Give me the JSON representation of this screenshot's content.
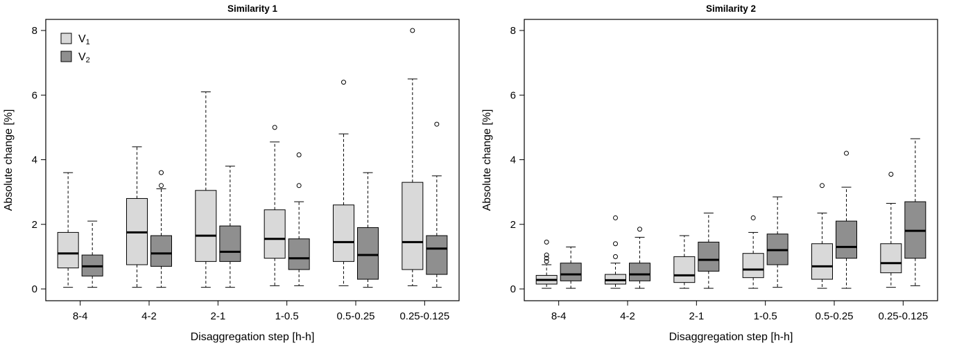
{
  "figure": {
    "background": "#ffffff",
    "panel_count": 2
  },
  "chart_data": [
    {
      "type": "boxplot",
      "title": "Similarity 1",
      "xlabel": "Disaggregation step [h-h]",
      "ylabel": "Absolute change [%]",
      "ylim": [
        0,
        8
      ],
      "yticks": [
        0,
        2,
        4,
        6,
        8
      ],
      "categories": [
        "8-4",
        "4-2",
        "2-1",
        "1-0.5",
        "0.5-0.25",
        "0.25-0.125"
      ],
      "legend": {
        "show": true,
        "position": "top-left"
      },
      "series": [
        {
          "name": "V1",
          "label_base": "V",
          "label_sub": "1",
          "fill": "#d9d9d9",
          "boxes": [
            {
              "low": 0.05,
              "q1": 0.65,
              "median": 1.1,
              "q3": 1.75,
              "high": 3.6,
              "outliers": []
            },
            {
              "low": 0.05,
              "q1": 0.75,
              "median": 1.75,
              "q3": 2.8,
              "high": 4.4,
              "outliers": []
            },
            {
              "low": 0.05,
              "q1": 0.85,
              "median": 1.65,
              "q3": 3.05,
              "high": 6.1,
              "outliers": []
            },
            {
              "low": 0.1,
              "q1": 0.95,
              "median": 1.55,
              "q3": 2.45,
              "high": 4.55,
              "outliers": [
                5.0
              ]
            },
            {
              "low": 0.1,
              "q1": 0.85,
              "median": 1.45,
              "q3": 2.6,
              "high": 4.8,
              "outliers": [
                6.4
              ]
            },
            {
              "low": 0.1,
              "q1": 0.6,
              "median": 1.45,
              "q3": 3.3,
              "high": 6.5,
              "outliers": [
                8.0
              ]
            }
          ]
        },
        {
          "name": "V2",
          "label_base": "V",
          "label_sub": "2",
          "fill": "#8f8f8f",
          "boxes": [
            {
              "low": 0.05,
              "q1": 0.4,
              "median": 0.7,
              "q3": 1.05,
              "high": 2.1,
              "outliers": []
            },
            {
              "low": 0.05,
              "q1": 0.7,
              "median": 1.1,
              "q3": 1.65,
              "high": 3.1,
              "outliers": [
                3.6,
                3.2
              ]
            },
            {
              "low": 0.05,
              "q1": 0.85,
              "median": 1.15,
              "q3": 1.95,
              "high": 3.8,
              "outliers": []
            },
            {
              "low": 0.1,
              "q1": 0.6,
              "median": 0.95,
              "q3": 1.55,
              "high": 2.7,
              "outliers": [
                4.15,
                3.2
              ]
            },
            {
              "low": 0.05,
              "q1": 0.3,
              "median": 1.05,
              "q3": 1.9,
              "high": 3.6,
              "outliers": []
            },
            {
              "low": 0.05,
              "q1": 0.45,
              "median": 1.25,
              "q3": 1.65,
              "high": 3.5,
              "outliers": [
                5.1
              ]
            }
          ]
        }
      ]
    },
    {
      "type": "boxplot",
      "title": "Similarity 2",
      "xlabel": "Disaggregation step [h-h]",
      "ylabel": "Absolute change [%]",
      "ylim": [
        0,
        8
      ],
      "yticks": [
        0,
        2,
        4,
        6,
        8
      ],
      "categories": [
        "8-4",
        "4-2",
        "2-1",
        "1-0.5",
        "0.5-0.25",
        "0.25-0.125"
      ],
      "legend": {
        "show": false,
        "position": "none"
      },
      "series": [
        {
          "name": "V1",
          "label_base": "V",
          "label_sub": "1",
          "fill": "#d9d9d9",
          "boxes": [
            {
              "low": 0.02,
              "q1": 0.15,
              "median": 0.28,
              "q3": 0.42,
              "high": 0.75,
              "outliers": [
                0.85,
                0.95,
                1.05,
                1.45
              ]
            },
            {
              "low": 0.02,
              "q1": 0.15,
              "median": 0.27,
              "q3": 0.45,
              "high": 0.8,
              "outliers": [
                1.0,
                1.4,
                2.2
              ]
            },
            {
              "low": 0.02,
              "q1": 0.2,
              "median": 0.42,
              "q3": 1.0,
              "high": 1.65,
              "outliers": []
            },
            {
              "low": 0.02,
              "q1": 0.35,
              "median": 0.6,
              "q3": 1.1,
              "high": 1.75,
              "outliers": [
                2.2
              ]
            },
            {
              "low": 0.02,
              "q1": 0.3,
              "median": 0.7,
              "q3": 1.4,
              "high": 2.35,
              "outliers": [
                3.2
              ]
            },
            {
              "low": 0.05,
              "q1": 0.5,
              "median": 0.8,
              "q3": 1.4,
              "high": 2.65,
              "outliers": [
                3.55
              ]
            }
          ]
        },
        {
          "name": "V2",
          "label_base": "V",
          "label_sub": "2",
          "fill": "#8f8f8f",
          "boxes": [
            {
              "low": 0.02,
              "q1": 0.25,
              "median": 0.45,
              "q3": 0.8,
              "high": 1.3,
              "outliers": []
            },
            {
              "low": 0.02,
              "q1": 0.25,
              "median": 0.45,
              "q3": 0.8,
              "high": 1.6,
              "outliers": [
                1.85
              ]
            },
            {
              "low": 0.02,
              "q1": 0.55,
              "median": 0.9,
              "q3": 1.45,
              "high": 2.35,
              "outliers": []
            },
            {
              "low": 0.05,
              "q1": 0.75,
              "median": 1.2,
              "q3": 1.7,
              "high": 2.85,
              "outliers": []
            },
            {
              "low": 0.02,
              "q1": 0.95,
              "median": 1.3,
              "q3": 2.1,
              "high": 3.15,
              "outliers": [
                4.2
              ]
            },
            {
              "low": 0.1,
              "q1": 0.95,
              "median": 1.8,
              "q3": 2.7,
              "high": 4.65,
              "outliers": []
            }
          ]
        }
      ]
    }
  ],
  "style": {
    "box_stroke": "#000000",
    "median_color": "#000000",
    "whisker_dash": "4,3",
    "outlier_shape": "open-circle"
  }
}
